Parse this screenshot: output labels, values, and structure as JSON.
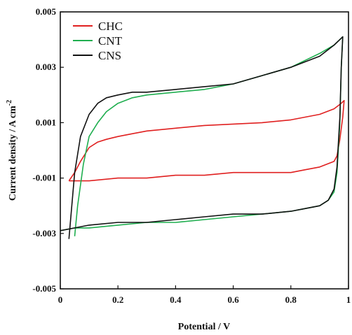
{
  "chart_data": {
    "type": "line",
    "title": "",
    "xlabel": "Potential / V",
    "ylabel": "Current density / A cm",
    "ylabel_superscript": "-2",
    "xlim": [
      0,
      1.0
    ],
    "ylim": [
      -0.005,
      0.005
    ],
    "x_ticks": [
      "0",
      "0.2",
      "0.4",
      "0.6",
      "0.8",
      "1"
    ],
    "y_ticks": [
      "-0.005",
      "-0.003",
      "-0.001",
      "0.001",
      "0.003",
      "0.005"
    ],
    "grid": false,
    "legend_position": "top-left",
    "series": [
      {
        "name": "CHC",
        "color": "#e02020",
        "x": [
          0.03,
          0.05,
          0.07,
          0.1,
          0.13,
          0.16,
          0.2,
          0.25,
          0.3,
          0.4,
          0.5,
          0.6,
          0.7,
          0.8,
          0.9,
          0.95,
          0.975,
          0.985,
          0.98,
          0.97,
          0.96,
          0.95,
          0.9,
          0.85,
          0.8,
          0.7,
          0.6,
          0.5,
          0.4,
          0.3,
          0.2,
          0.1,
          0.05,
          0.03
        ],
        "y": [
          -0.0011,
          -0.0008,
          -0.0004,
          0.0001,
          0.0003,
          0.0004,
          0.0005,
          0.0006,
          0.0007,
          0.0008,
          0.0009,
          0.00095,
          0.001,
          0.0011,
          0.0013,
          0.0015,
          0.0017,
          0.0018,
          0.0012,
          0.0004,
          -0.0002,
          -0.0004,
          -0.0006,
          -0.0007,
          -0.0008,
          -0.0008,
          -0.0008,
          -0.0009,
          -0.0009,
          -0.001,
          -0.001,
          -0.0011,
          -0.0011,
          -0.0011
        ]
      },
      {
        "name": "CNT",
        "color": "#1fae4f",
        "x": [
          0.05,
          0.06,
          0.08,
          0.1,
          0.13,
          0.16,
          0.2,
          0.25,
          0.3,
          0.4,
          0.5,
          0.6,
          0.7,
          0.8,
          0.9,
          0.95,
          0.97,
          0.98,
          0.975,
          0.97,
          0.96,
          0.95,
          0.93,
          0.9,
          0.85,
          0.8,
          0.7,
          0.6,
          0.5,
          0.4,
          0.3,
          0.2,
          0.1,
          0.05,
          0.0
        ],
        "y": [
          -0.0031,
          -0.002,
          -0.0005,
          0.0005,
          0.001,
          0.0014,
          0.0017,
          0.0019,
          0.002,
          0.0021,
          0.0022,
          0.0024,
          0.0027,
          0.003,
          0.0035,
          0.0038,
          0.004,
          0.0041,
          0.003,
          0.001,
          -0.0008,
          -0.0015,
          -0.0018,
          -0.002,
          -0.0021,
          -0.0022,
          -0.0023,
          -0.0024,
          -0.0025,
          -0.0026,
          -0.0026,
          -0.0027,
          -0.0028,
          -0.0028,
          -0.0029
        ]
      },
      {
        "name": "CNS",
        "color": "#111111",
        "x": [
          0.03,
          0.04,
          0.05,
          0.07,
          0.1,
          0.13,
          0.16,
          0.2,
          0.25,
          0.3,
          0.4,
          0.5,
          0.6,
          0.7,
          0.8,
          0.9,
          0.95,
          0.97,
          0.98,
          0.975,
          0.97,
          0.96,
          0.95,
          0.93,
          0.9,
          0.85,
          0.8,
          0.7,
          0.6,
          0.5,
          0.4,
          0.3,
          0.2,
          0.1,
          0.05,
          0.0
        ],
        "y": [
          -0.0032,
          -0.002,
          -0.0008,
          0.0005,
          0.0013,
          0.0017,
          0.0019,
          0.002,
          0.0021,
          0.0021,
          0.0022,
          0.0023,
          0.0024,
          0.0027,
          0.003,
          0.0034,
          0.0038,
          0.004,
          0.0041,
          0.003,
          0.0012,
          -0.0006,
          -0.0014,
          -0.0018,
          -0.002,
          -0.0021,
          -0.0022,
          -0.0023,
          -0.0023,
          -0.0024,
          -0.0025,
          -0.0026,
          -0.0026,
          -0.0027,
          -0.0028,
          -0.0029
        ]
      }
    ]
  }
}
